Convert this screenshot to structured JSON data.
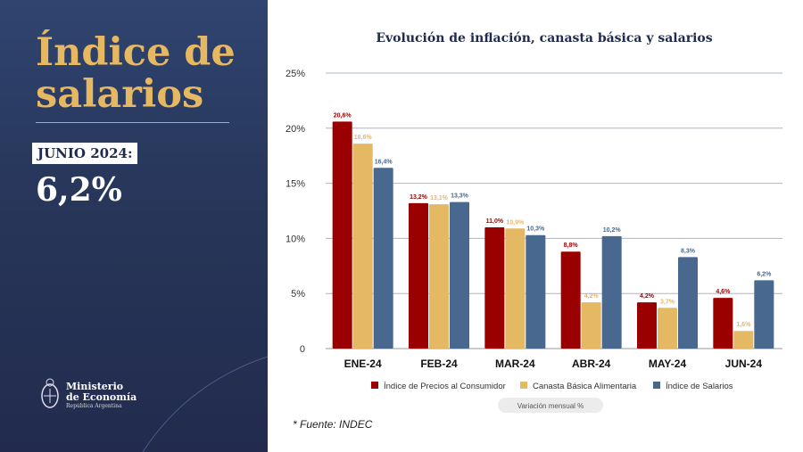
{
  "left_panel": {
    "title": "Índice de salarios",
    "period_label": "JUNIO 2024:",
    "value": "6,2%",
    "logo": {
      "line1": "Ministerio",
      "line2": "de Economía",
      "line3": "República Argentina"
    }
  },
  "source": "*  Fuente: INDEC",
  "chart_data": {
    "type": "bar",
    "title": "Evolución de inflación, canasta básica y salarios",
    "categories": [
      "ENE-24",
      "FEB-24",
      "MAR-24",
      "ABR-24",
      "MAY-24",
      "JUN-24"
    ],
    "ylim": [
      0,
      25
    ],
    "yticks": [
      "0",
      "5%",
      "10%",
      "15%",
      "20%",
      "25%"
    ],
    "grid": true,
    "legend_position": "bottom",
    "series": [
      {
        "name": "Índice de Precios al Consumidor",
        "color": "#9b0000",
        "values": [
          20.6,
          13.2,
          11.0,
          8.8,
          4.2,
          4.6
        ],
        "labels": [
          "20,6%",
          "13,2%",
          "11,0%",
          "8,8%",
          "4,2%",
          "4,6%"
        ]
      },
      {
        "name": "Canasta Básica Alimentaria",
        "color": "#e5b863",
        "values": [
          18.6,
          13.1,
          10.9,
          4.2,
          3.7,
          1.6
        ],
        "labels": [
          "18,6%",
          "13,1%",
          "10,9%",
          "4,2%",
          "3,7%",
          "1,6%"
        ]
      },
      {
        "name": "Índice de Salarios",
        "color": "#486890",
        "values": [
          16.4,
          13.3,
          10.3,
          10.2,
          8.3,
          6.2
        ],
        "labels": [
          "16,4%",
          "13,3%",
          "10,3%",
          "10,2%",
          "8,3%",
          "6,2%"
        ]
      }
    ],
    "note": "Variación mensual %"
  }
}
